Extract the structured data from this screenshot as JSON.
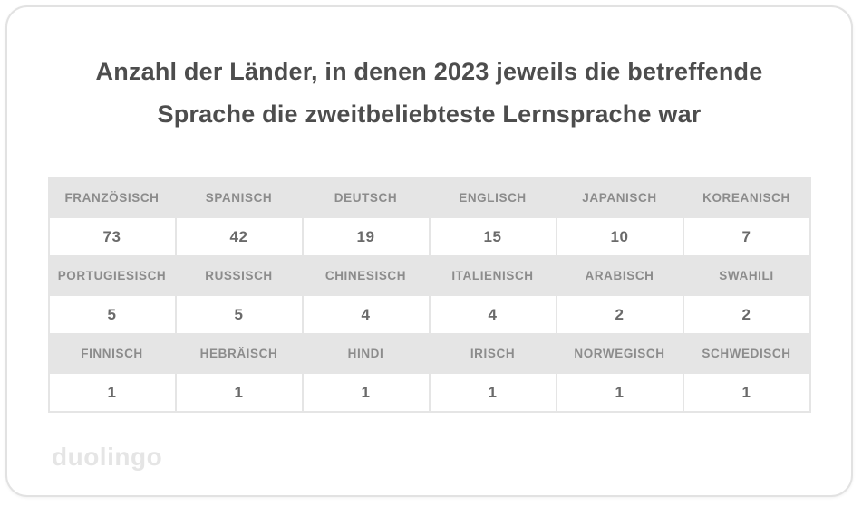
{
  "title": {
    "line1": "Anzahl der Länder, in denen 2023 jeweils die betreffende",
    "line2": "Sprache die zweitbeliebteste Lernsprache war"
  },
  "brand": {
    "wordmark": "duolingo"
  },
  "colors": {
    "card_background": "#ffffff",
    "card_border": "#e2e2e2",
    "title_text": "#4d4d4d",
    "header_cell_background": "#e5e5e5",
    "header_cell_text": "#8c8c8c",
    "value_cell_text": "#6a6a6a",
    "cell_border": "#e5e5e5",
    "wordmark_text": "#e5e5e5"
  },
  "chart_data": {
    "type": "table",
    "title": "Anzahl der Länder, in denen 2023 jeweils die betreffende Sprache die zweitbeliebteste Lernsprache war",
    "layout": "6 columns x 3 label/value row pairs",
    "groups": [
      {
        "labels": [
          "FRANZÖSISCH",
          "SPANISCH",
          "DEUTSCH",
          "ENGLISCH",
          "JAPANISCH",
          "KOREANISCH"
        ],
        "values": [
          73,
          42,
          19,
          15,
          10,
          7
        ]
      },
      {
        "labels": [
          "PORTUGIESISCH",
          "RUSSISCH",
          "CHINESISCH",
          "ITALIENISCH",
          "ARABISCH",
          "SWAHILI"
        ],
        "values": [
          5,
          5,
          4,
          4,
          2,
          2
        ]
      },
      {
        "labels": [
          "FINNISCH",
          "HEBRÄISCH",
          "HINDI",
          "IRISCH",
          "NORWEGISCH",
          "SCHWEDISCH"
        ],
        "values": [
          1,
          1,
          1,
          1,
          1,
          1
        ]
      }
    ]
  }
}
